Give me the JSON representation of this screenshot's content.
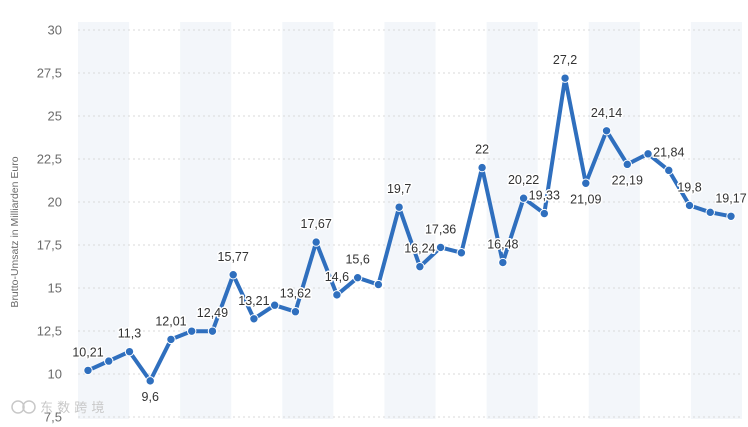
{
  "chart_data": {
    "type": "line",
    "title": "",
    "xlabel": "",
    "ylabel": "Brutto-Umsatz in Milliarden Euro",
    "ylim": [
      7.5,
      30
    ],
    "yticks": [
      "7,5",
      "10",
      "12,5",
      "15",
      "17,5",
      "20",
      "22,5",
      "25",
      "27,5",
      "30"
    ],
    "grid": "horizontal dashed lines, alternating shaded vertical bands",
    "legend": "none",
    "series": [
      {
        "values": [
          10.21,
          10.75,
          11.3,
          9.6,
          12.01,
          12.49,
          12.49,
          15.77,
          13.21,
          14.0,
          13.62,
          17.67,
          14.6,
          15.6,
          15.2,
          19.7,
          16.24,
          17.36,
          17.05,
          22.0,
          16.48,
          20.22,
          19.33,
          27.2,
          21.09,
          24.14,
          22.19,
          22.8,
          21.84,
          19.8,
          19.4,
          19.17
        ],
        "labels": [
          "10,21",
          "",
          "11,3",
          "9,6",
          "12,01",
          "",
          "12,49",
          "15,77",
          "13,21",
          "",
          "13,62",
          "17,67",
          "14,6",
          "15,6",
          "",
          "19,7",
          "16,24",
          "17,36",
          "",
          "22",
          "16,48",
          "20,22",
          "19,33",
          "27,2",
          "21,09",
          "24,14",
          "22,19",
          "",
          "21,84",
          "19,8",
          "",
          "19,17"
        ]
      }
    ],
    "colors": {
      "line": "#2f6fbe",
      "band": "#f3f6fa",
      "grid": "#d9d9d9"
    }
  },
  "watermark": {
    "text": "东 数 跨 境"
  }
}
